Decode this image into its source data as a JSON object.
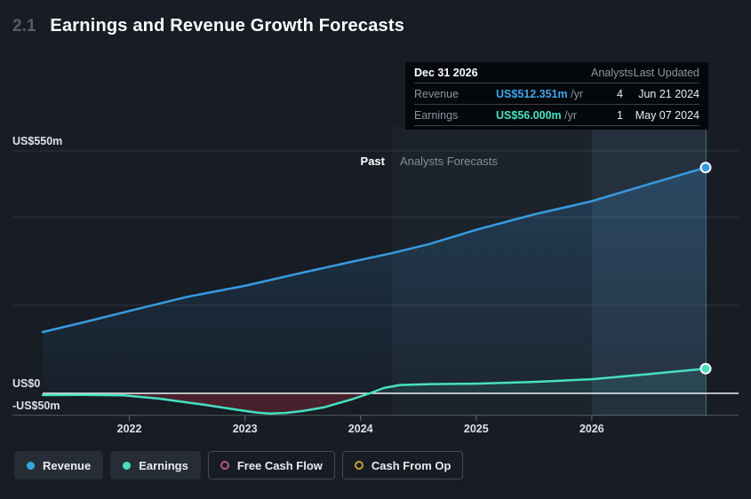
{
  "header": {
    "section_number": "2.1",
    "title": "Earnings and Revenue Growth Forecasts"
  },
  "tooltip": {
    "date": "Dec 31 2026",
    "analysts_header": "Analysts",
    "updated_header": "Last Updated",
    "rows": [
      {
        "label": "Revenue",
        "value": "US$512.351m",
        "unit": "/yr",
        "analysts": "4",
        "updated": "Jun 21 2024",
        "color": "#3ea6ec"
      },
      {
        "label": "Earnings",
        "value": "US$56.000m",
        "unit": "/yr",
        "analysts": "1",
        "updated": "May 07 2024",
        "color": "#46e3c3"
      }
    ]
  },
  "chart_data": {
    "type": "area",
    "title": "Earnings and Revenue Growth Forecasts",
    "unit": "US$ millions",
    "legend_position": "bottom",
    "grid": true,
    "x_axis": {
      "min": 2021.25,
      "max": 2026.985,
      "ticks": [
        2022,
        2023,
        2024,
        2025,
        2026
      ]
    },
    "y_axis": {
      "min": -60,
      "max": 560,
      "gridlines": [
        550,
        400,
        200,
        0,
        -50
      ],
      "labels": [
        {
          "value": 550,
          "text": "US$550m"
        },
        {
          "value": 0,
          "text": "US$0"
        },
        {
          "value": -50,
          "text": "-US$50m"
        }
      ]
    },
    "divider": {
      "x": 2024.27,
      "past_label": "Past",
      "forecast_label": "Analysts Forecasts"
    },
    "highlight_band": {
      "from": 2026.0,
      "to": 2026.985
    },
    "series": [
      {
        "name": "Revenue",
        "color": "#389be0",
        "points": [
          [
            2021.25,
            139
          ],
          [
            2021.6,
            161
          ],
          [
            2022,
            187
          ],
          [
            2022.5,
            219
          ],
          [
            2023,
            244
          ],
          [
            2023.5,
            274
          ],
          [
            2024,
            303
          ],
          [
            2024.27,
            318
          ],
          [
            2024.6,
            339
          ],
          [
            2025,
            371
          ],
          [
            2025.5,
            406
          ],
          [
            2026,
            436
          ],
          [
            2026.5,
            475
          ],
          [
            2026.985,
            512.351
          ]
        ]
      },
      {
        "name": "Earnings",
        "color": "#47e0c2",
        "points": [
          [
            2021.25,
            -4
          ],
          [
            2021.6,
            -3.5
          ],
          [
            2021.95,
            -4.5
          ],
          [
            2022.26,
            -12
          ],
          [
            2022.45,
            -19
          ],
          [
            2022.65,
            -26
          ],
          [
            2022.95,
            -38
          ],
          [
            2023.1,
            -43.5
          ],
          [
            2023.21,
            -46
          ],
          [
            2023.35,
            -44.5
          ],
          [
            2023.5,
            -40
          ],
          [
            2023.68,
            -32
          ],
          [
            2023.92,
            -14
          ],
          [
            2024.08,
            0
          ],
          [
            2024.2,
            12
          ],
          [
            2024.34,
            19
          ],
          [
            2024.6,
            21
          ],
          [
            2025,
            22
          ],
          [
            2025.5,
            26
          ],
          [
            2026,
            32
          ],
          [
            2026.5,
            44
          ],
          [
            2026.985,
            56
          ]
        ]
      }
    ],
    "colors": {
      "revenue_fill_top": "rgba(56,155,224,0.22)",
      "revenue_fill_bottom": "rgba(56,155,224,0.03)",
      "earnings_positive_fill": "rgba(71,224,194,0.10)",
      "earnings_negative_fill": "rgba(148,42,54,0.40)",
      "forecast_region": "rgba(124,160,205,0.055)",
      "highlight_band": "rgba(124,176,226,0.10)",
      "zero_line": "#eef2f5",
      "gridline": "rgba(255,255,255,0.10)"
    }
  },
  "legend": [
    {
      "label": "Revenue",
      "color": "#3aa6e0",
      "active": true
    },
    {
      "label": "Earnings",
      "color": "#47e0c2",
      "active": true
    },
    {
      "label": "Free Cash Flow",
      "color": "#b4578b",
      "active": false
    },
    {
      "label": "Cash From Op",
      "color": "#c4a135",
      "active": false
    }
  ]
}
